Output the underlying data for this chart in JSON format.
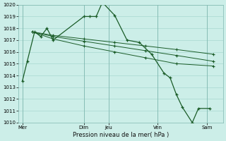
{
  "title": "Pression niveau de la mer( hPa )",
  "bg_color": "#cceee8",
  "grid_color": "#a8d8d0",
  "line_color": "#1a5c28",
  "ylim": [
    1010,
    1020
  ],
  "yticks": [
    1010,
    1011,
    1012,
    1013,
    1014,
    1015,
    1016,
    1017,
    1018,
    1019,
    1020
  ],
  "x_day_labels": [
    "Mer",
    "Dim",
    "Jeu",
    "Ven",
    "Sam"
  ],
  "x_day_positions": [
    0,
    5,
    7,
    11,
    15
  ],
  "xlim": [
    -0.3,
    16.3
  ],
  "series0_x": [
    0,
    0.4,
    1.0,
    1.5,
    2.0,
    2.5,
    5.0,
    5.5,
    6.0,
    6.5,
    7.5,
    8.5,
    9.5,
    10.5,
    11.5,
    12.0,
    12.5,
    13.0,
    13.8,
    14.3,
    15.2
  ],
  "series0_y": [
    1013.5,
    1015.2,
    1017.7,
    1017.3,
    1018.0,
    1017.0,
    1019.0,
    1019.0,
    1019.0,
    1020.2,
    1019.1,
    1017.0,
    1016.8,
    1015.8,
    1014.2,
    1013.8,
    1012.4,
    1011.3,
    1010.0,
    1011.2,
    1011.2
  ],
  "line1_x": [
    0.8,
    15.5
  ],
  "line1_y": [
    1017.7,
    1015.8
  ],
  "line1_markers_x": [
    0.8,
    2.5,
    5.0,
    7.5,
    10.0,
    12.5,
    15.5
  ],
  "line1_markers_y": [
    1017.7,
    1017.4,
    1017.1,
    1016.8,
    1016.5,
    1016.2,
    1015.8
  ],
  "line2_x": [
    0.8,
    15.5
  ],
  "line2_y": [
    1017.7,
    1015.2
  ],
  "line2_markers_x": [
    0.8,
    2.5,
    5.0,
    7.5,
    10.0,
    12.5,
    15.5
  ],
  "line2_markers_y": [
    1017.7,
    1017.3,
    1016.9,
    1016.5,
    1016.1,
    1015.7,
    1015.2
  ],
  "line3_x": [
    0.8,
    15.5
  ],
  "line3_y": [
    1017.7,
    1014.8
  ],
  "line3_markers_x": [
    0.8,
    2.5,
    5.0,
    7.5,
    10.0,
    12.5,
    15.5
  ],
  "line3_markers_y": [
    1017.7,
    1017.1,
    1016.5,
    1016.0,
    1015.5,
    1015.0,
    1014.8
  ]
}
